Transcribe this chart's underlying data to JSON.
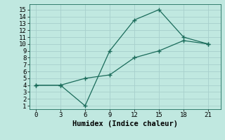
{
  "xlabel": "Humidex (Indice chaleur)",
  "x": [
    0,
    3,
    6,
    9,
    12,
    15,
    18,
    21
  ],
  "line1_y": [
    4,
    4,
    1,
    9,
    13.5,
    15,
    11,
    10
  ],
  "line2_y": [
    4,
    4,
    5,
    5.5,
    8,
    9,
    10.5,
    10
  ],
  "line_color": "#1a6b5a",
  "bg_color": "#c0e8e0",
  "grid_color": "#a8d0cc",
  "xlim": [
    -0.8,
    22.5
  ],
  "ylim": [
    0.5,
    15.8
  ],
  "xticks": [
    0,
    3,
    6,
    9,
    12,
    15,
    18,
    21
  ],
  "yticks": [
    1,
    2,
    3,
    4,
    5,
    6,
    7,
    8,
    9,
    10,
    11,
    12,
    13,
    14,
    15
  ],
  "marker": "+",
  "markersize": 5,
  "markeredgewidth": 1.0,
  "linewidth": 0.9,
  "xlabel_fontsize": 7.5,
  "tick_fontsize": 6.5
}
